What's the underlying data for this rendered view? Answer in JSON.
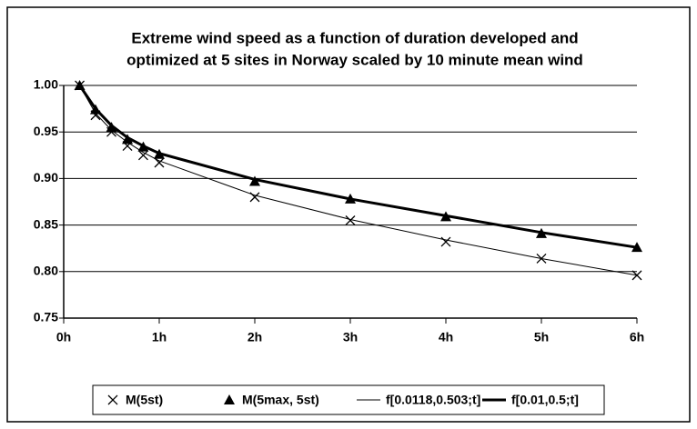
{
  "chart_data": {
    "type": "line",
    "title": [
      "Extreme wind speed as a function of duration developed and",
      "optimized at 5 sites in Norway scaled by 10 minute mean wind"
    ],
    "x": [
      0.167,
      0.333,
      0.5,
      0.667,
      0.833,
      1,
      2,
      3,
      4,
      5,
      6
    ],
    "series": [
      {
        "name": "M(5st)",
        "color": "#000000",
        "marker": "x",
        "line_width": 0,
        "values": [
          1.0,
          0.968,
          0.95,
          0.935,
          0.925,
          0.917,
          0.88,
          0.855,
          0.832,
          0.814,
          0.796
        ]
      },
      {
        "name": "M(5max, 5st)",
        "color": "#000000",
        "marker": "triangle",
        "line_width": 0,
        "values": [
          1.0,
          0.974,
          0.955,
          0.942,
          0.934,
          0.926,
          0.897,
          0.878,
          0.859,
          0.841,
          0.826
        ]
      },
      {
        "name": "f[0.0118,0.503;t]",
        "color": "#000000",
        "marker": "none",
        "line_width": 1,
        "values": [
          1.0,
          0.97,
          0.952,
          0.939,
          0.928,
          0.919,
          0.882,
          0.856,
          0.834,
          0.814,
          0.796
        ]
      },
      {
        "name": "f[0.01,0.5;t]",
        "color": "#000000",
        "marker": "none",
        "line_width": 3,
        "values": [
          1.0,
          0.975,
          0.957,
          0.944,
          0.935,
          0.927,
          0.899,
          0.878,
          0.86,
          0.842,
          0.826
        ]
      }
    ],
    "xlim": [
      0,
      6
    ],
    "xticks": [
      {
        "value": 0,
        "label": "0h"
      },
      {
        "value": 1,
        "label": "1h"
      },
      {
        "value": 2,
        "label": "2h"
      },
      {
        "value": 3,
        "label": "3h"
      },
      {
        "value": 4,
        "label": "4h"
      },
      {
        "value": 5,
        "label": "5h"
      },
      {
        "value": 6,
        "label": "6h"
      }
    ],
    "ylim": [
      0.75,
      1.0
    ],
    "yticks": [
      0.75,
      {
        "value": 0.8,
        "label": "0.80"
      },
      0.85,
      {
        "value": 0.9,
        "label": "0.90"
      },
      0.95,
      {
        "value": 1.0,
        "label": "1.00"
      }
    ],
    "grid": true,
    "legend": "bottom"
  }
}
